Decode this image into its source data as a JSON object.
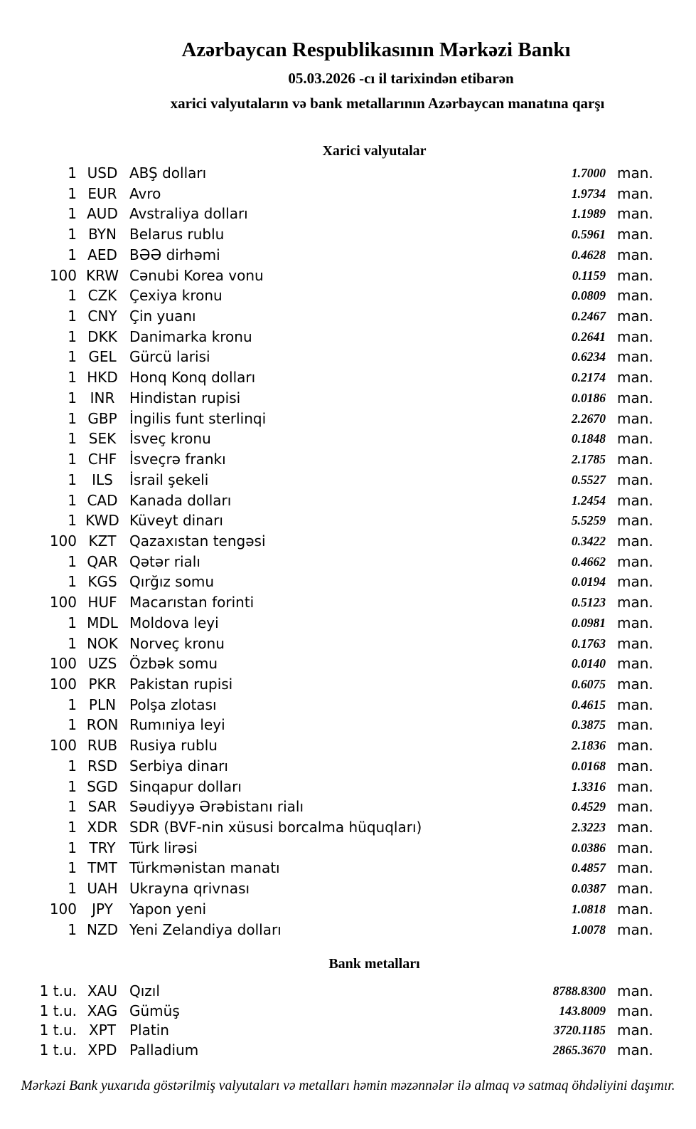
{
  "header": {
    "title": "Azərbaycan Respublikasının Mərkəzi Bankı",
    "date_line": "05.03.2026 -cı il tarixindən etibarən",
    "subtitle": "xarici valyutaların və bank metallarının Azərbaycan manatına qarşı"
  },
  "currency_section": {
    "heading": "Xarici valyutalar",
    "unit_label": "man.",
    "rows": [
      {
        "qty": "1",
        "code": "USD",
        "name": "ABŞ dolları",
        "rate": "1.7000"
      },
      {
        "qty": "1",
        "code": "EUR",
        "name": "Avro",
        "rate": "1.9734"
      },
      {
        "qty": "1",
        "code": "AUD",
        "name": "Avstraliya dolları",
        "rate": "1.1989"
      },
      {
        "qty": "1",
        "code": "BYN",
        "name": "Belarus rublu",
        "rate": "0.5961"
      },
      {
        "qty": "1",
        "code": "AED",
        "name": "BƏƏ dirhəmi",
        "rate": "0.4628"
      },
      {
        "qty": "100",
        "code": "KRW",
        "name": "Cənubi Korea vonu",
        "rate": "0.1159"
      },
      {
        "qty": "1",
        "code": "CZK",
        "name": "Çexiya kronu",
        "rate": "0.0809"
      },
      {
        "qty": "1",
        "code": "CNY",
        "name": "Çin yuanı",
        "rate": "0.2467"
      },
      {
        "qty": "1",
        "code": "DKK",
        "name": "Danimarka kronu",
        "rate": "0.2641"
      },
      {
        "qty": "1",
        "code": "GEL",
        "name": "Gürcü larisi",
        "rate": "0.6234"
      },
      {
        "qty": "1",
        "code": "HKD",
        "name": "Honq Konq dolları",
        "rate": "0.2174"
      },
      {
        "qty": "1",
        "code": "INR",
        "name": "Hindistan rupisi",
        "rate": "0.0186"
      },
      {
        "qty": "1",
        "code": "GBP",
        "name": "İngilis funt sterlinqi",
        "rate": "2.2670"
      },
      {
        "qty": "1",
        "code": "SEK",
        "name": "İsveç kronu",
        "rate": "0.1848"
      },
      {
        "qty": "1",
        "code": "CHF",
        "name": "İsveçrə frankı",
        "rate": "2.1785"
      },
      {
        "qty": "1",
        "code": "ILS",
        "name": "İsrail şekeli",
        "rate": "0.5527"
      },
      {
        "qty": "1",
        "code": "CAD",
        "name": "Kanada dolları",
        "rate": "1.2454"
      },
      {
        "qty": "1",
        "code": "KWD",
        "name": "Küveyt dinarı",
        "rate": "5.5259"
      },
      {
        "qty": "100",
        "code": "KZT",
        "name": "Qazaxıstan tengəsi",
        "rate": "0.3422"
      },
      {
        "qty": "1",
        "code": "QAR",
        "name": "Qətər rialı",
        "rate": "0.4662"
      },
      {
        "qty": "1",
        "code": "KGS",
        "name": "Qırğız somu",
        "rate": "0.0194"
      },
      {
        "qty": "100",
        "code": "HUF",
        "name": "Macarıstan forinti",
        "rate": "0.5123"
      },
      {
        "qty": "1",
        "code": "MDL",
        "name": "Moldova leyi",
        "rate": "0.0981"
      },
      {
        "qty": "1",
        "code": "NOK",
        "name": "Norveç kronu",
        "rate": "0.1763"
      },
      {
        "qty": "100",
        "code": "UZS",
        "name": "Özbək somu",
        "rate": "0.0140"
      },
      {
        "qty": "100",
        "code": "PKR",
        "name": "Pakistan rupisi",
        "rate": "0.6075"
      },
      {
        "qty": "1",
        "code": "PLN",
        "name": "Polşa zlotası",
        "rate": "0.4615"
      },
      {
        "qty": "1",
        "code": "RON",
        "name": "Rumıniya leyi",
        "rate": "0.3875"
      },
      {
        "qty": "100",
        "code": "RUB",
        "name": "Rusiya rublu",
        "rate": "2.1836"
      },
      {
        "qty": "1",
        "code": "RSD",
        "name": "Serbiya dinarı",
        "rate": "0.0168"
      },
      {
        "qty": "1",
        "code": "SGD",
        "name": "Sinqapur dolları",
        "rate": "1.3316"
      },
      {
        "qty": "1",
        "code": "SAR",
        "name": "Səudiyyə Ərəbistanı rialı",
        "rate": "0.4529"
      },
      {
        "qty": "1",
        "code": "XDR",
        "name": "SDR (BVF-nin xüsusi borcalma hüquqları)",
        "rate": "2.3223"
      },
      {
        "qty": "1",
        "code": "TRY",
        "name": "Türk lirəsi",
        "rate": "0.0386"
      },
      {
        "qty": "1",
        "code": "TMT",
        "name": "Türkmənistan manatı",
        "rate": "0.4857"
      },
      {
        "qty": "1",
        "code": "UAH",
        "name": "Ukrayna qrivnası",
        "rate": "0.0387"
      },
      {
        "qty": "100",
        "code": "JPY",
        "name": "Yapon yeni",
        "rate": "1.0818"
      },
      {
        "qty": "1",
        "code": "NZD",
        "name": "Yeni Zelandiya dolları",
        "rate": "1.0078"
      }
    ]
  },
  "metals_section": {
    "heading": "Bank metalları",
    "unit_label": "man.",
    "rows": [
      {
        "qty": "1 t.u.",
        "code": "XAU",
        "name": "Qızıl",
        "rate": "8788.8300"
      },
      {
        "qty": "1 t.u.",
        "code": "XAG",
        "name": "Gümüş",
        "rate": "143.8009"
      },
      {
        "qty": "1 t.u.",
        "code": "XPT",
        "name": "Platin",
        "rate": "3720.1185"
      },
      {
        "qty": "1 t.u.",
        "code": "XPD",
        "name": "Palladium",
        "rate": "2865.3670"
      }
    ]
  },
  "footer": {
    "disclaimer": "Mərkəzi Bank yuxarıda göstərilmiş valyutaları və metalları həmin məzənnələr ilə almaq və satmaq öhdəliyini daşımır."
  }
}
